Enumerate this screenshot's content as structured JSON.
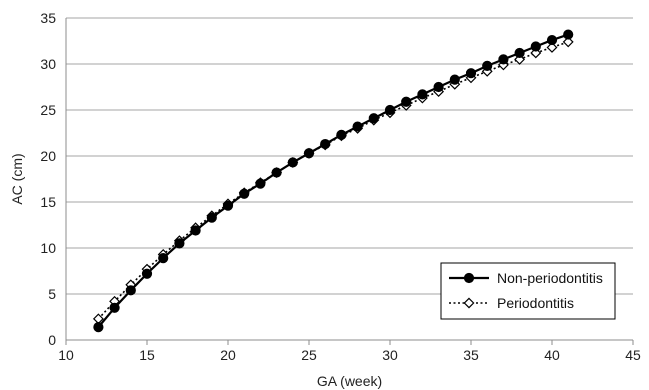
{
  "chart_data": {
    "type": "line",
    "xlabel": "GA (week)",
    "ylabel": "AC (cm)",
    "xlim": [
      10,
      45
    ],
    "ylim": [
      0,
      35
    ],
    "xticks": [
      10,
      15,
      20,
      25,
      30,
      35,
      40,
      45
    ],
    "yticks": [
      0,
      5,
      10,
      15,
      20,
      25,
      30,
      35
    ],
    "grid": "horizontal",
    "legend_position": "bottom-right",
    "x": [
      12,
      13,
      14,
      15,
      16,
      17,
      18,
      19,
      20,
      21,
      22,
      23,
      24,
      25,
      26,
      27,
      28,
      29,
      30,
      31,
      32,
      33,
      34,
      35,
      36,
      37,
      38,
      39,
      40,
      41
    ],
    "series": [
      {
        "name": "Non-periodontitis",
        "marker": "filled-circle",
        "line_style": "solid",
        "color": "#000000",
        "values": [
          1.4,
          3.5,
          5.4,
          7.2,
          8.9,
          10.5,
          11.9,
          13.3,
          14.6,
          15.9,
          17.0,
          18.2,
          19.3,
          20.3,
          21.3,
          22.3,
          23.2,
          24.1,
          25.0,
          25.9,
          26.7,
          27.5,
          28.3,
          29.0,
          29.8,
          30.5,
          31.2,
          31.9,
          32.6,
          33.2
        ]
      },
      {
        "name": "Periodontitis",
        "marker": "open-diamond",
        "line_style": "dotted",
        "color": "#000000",
        "values": [
          2.3,
          4.2,
          6.0,
          7.7,
          9.3,
          10.8,
          12.2,
          13.5,
          14.8,
          16.0,
          17.1,
          18.2,
          19.3,
          20.3,
          21.2,
          22.2,
          23.0,
          23.9,
          24.7,
          25.5,
          26.3,
          27.0,
          27.8,
          28.5,
          29.2,
          29.9,
          30.5,
          31.2,
          31.8,
          32.4
        ]
      }
    ]
  }
}
